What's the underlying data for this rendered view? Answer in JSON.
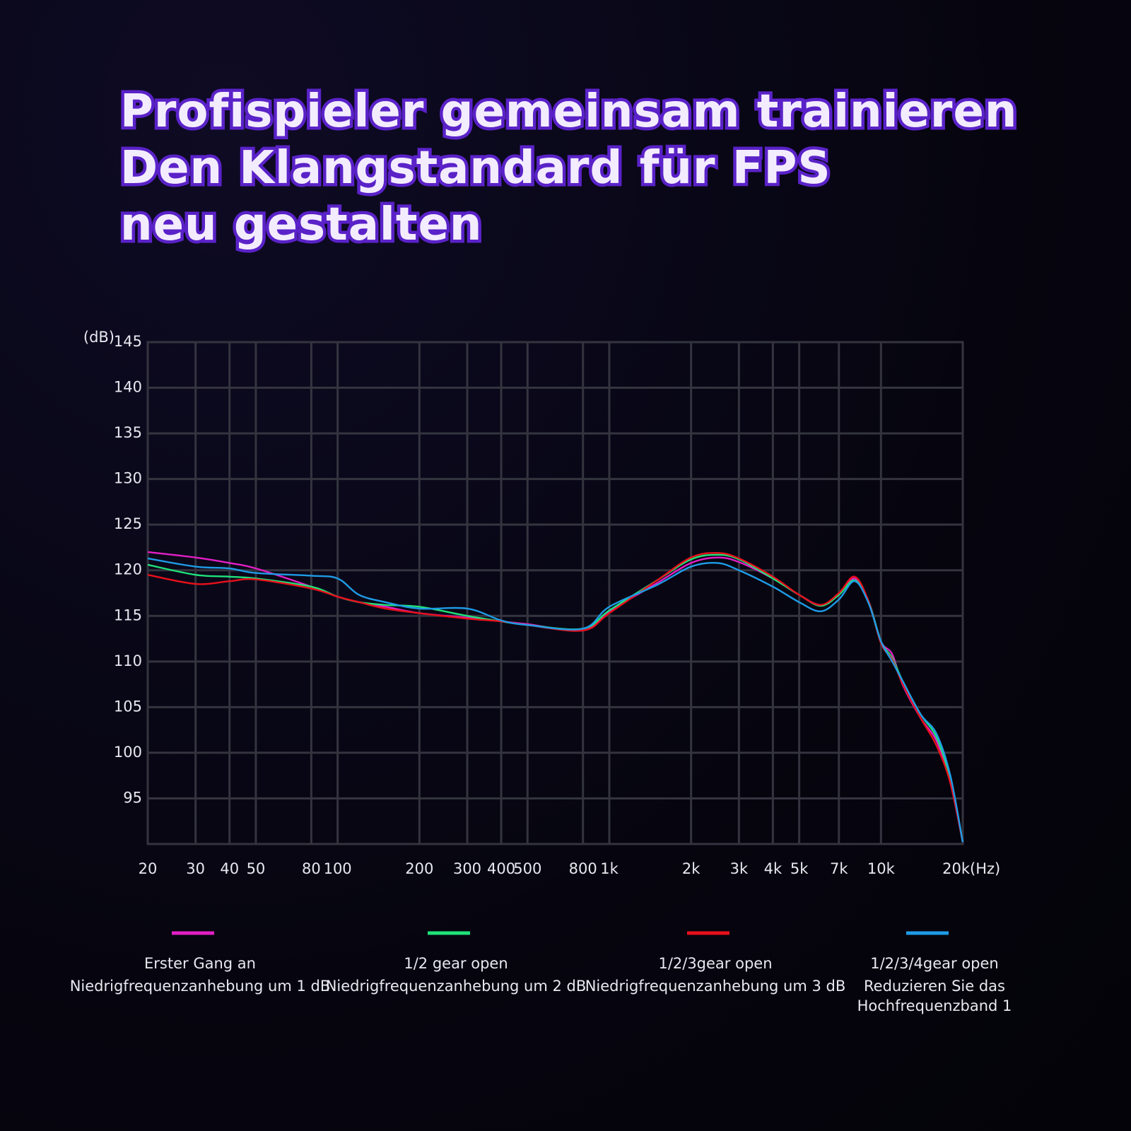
{
  "chart_data": {
    "type": "line",
    "title": [
      "Profispieler gemeinsam trainieren",
      "Den Klangstandard für FPS neu gestalten"
    ],
    "x_unit": "(Hz)",
    "y_unit": "(dB)",
    "x": [
      20,
      30,
      40,
      50,
      80,
      100,
      120,
      150,
      200,
      300,
      400,
      500,
      800,
      1000,
      1500,
      2000,
      2500,
      3000,
      4000,
      5000,
      6000,
      7000,
      8000,
      9000,
      10000,
      11000,
      12000,
      14000,
      16000,
      18000,
      20000
    ],
    "log_x": true,
    "xlim": [
      20,
      20000
    ],
    "xticks": [
      20,
      30,
      40,
      50,
      80,
      100,
      200,
      300,
      400,
      500,
      800,
      {
        "value": 1000,
        "label": "1k"
      },
      {
        "value": 2000,
        "label": "2k"
      },
      {
        "value": 3000,
        "label": "3k"
      },
      {
        "value": 4000,
        "label": "4k"
      },
      {
        "value": 5000,
        "label": "5k"
      },
      {
        "value": 7000,
        "label": "7k"
      },
      {
        "value": 10000,
        "label": "10k"
      },
      {
        "value": 20000,
        "label": "20k"
      }
    ],
    "ylim": [
      90,
      145
    ],
    "yticks": [
      95,
      100,
      105,
      110,
      115,
      120,
      125,
      130,
      135,
      140,
      145
    ],
    "grid": true,
    "series": [
      {
        "name": "Erster Gang an",
        "color": "#e21fc4",
        "values": [
          122.0,
          121.4,
          120.8,
          120.2,
          118.2,
          117.1,
          116.5,
          116.0,
          115.3,
          114.8,
          114.4,
          114.1,
          113.4,
          115.5,
          118.6,
          120.8,
          121.4,
          120.9,
          119.1,
          117.3,
          116.2,
          117.3,
          119.1,
          116.6,
          112.2,
          110.8,
          107.5,
          103.8,
          101.3,
          96.7,
          90.2
        ]
      },
      {
        "name": "1/2 gear open",
        "color": "#1fe27a",
        "values": [
          120.6,
          119.5,
          119.3,
          119.1,
          118.2,
          117.1,
          116.5,
          116.2,
          116.0,
          115.0,
          114.4,
          114.0,
          113.6,
          115.6,
          118.9,
          121.2,
          121.7,
          121.2,
          119.1,
          117.3,
          116.1,
          117.3,
          118.9,
          116.6,
          112.2,
          110.4,
          107.9,
          104.2,
          101.7,
          97.1,
          90.2
        ]
      },
      {
        "name": "1/2/3gear open",
        "color": "#e8101a",
        "values": [
          119.5,
          118.5,
          118.8,
          119.0,
          118.0,
          117.1,
          116.5,
          115.8,
          115.3,
          114.7,
          114.4,
          114.0,
          113.4,
          115.3,
          118.9,
          121.4,
          121.9,
          121.3,
          119.3,
          117.3,
          116.2,
          117.5,
          119.3,
          116.6,
          112.0,
          110.2,
          107.6,
          103.8,
          100.8,
          96.7,
          90.2
        ]
      },
      {
        "name": "1/2/3/4gear open",
        "color": "#1e9be6",
        "values": [
          121.3,
          120.4,
          120.2,
          119.7,
          119.4,
          119.1,
          117.3,
          116.5,
          115.8,
          115.8,
          114.5,
          114.0,
          113.6,
          116.0,
          118.4,
          120.4,
          120.8,
          120.0,
          118.2,
          116.5,
          115.5,
          116.8,
          118.8,
          116.4,
          112.2,
          110.0,
          107.9,
          104.2,
          102.1,
          97.5,
          90.2
        ]
      }
    ],
    "legend_notes": [
      [
        "Niedrigfrequenzanhebung um 1 dB"
      ],
      [
        "Niedrigfrequenzanhebung um 2 dB"
      ],
      [
        "Niedrigfrequenzanhebung um 3 dB"
      ],
      [
        "Reduzieren Sie das",
        "Hochfrequenzband 1"
      ]
    ]
  }
}
